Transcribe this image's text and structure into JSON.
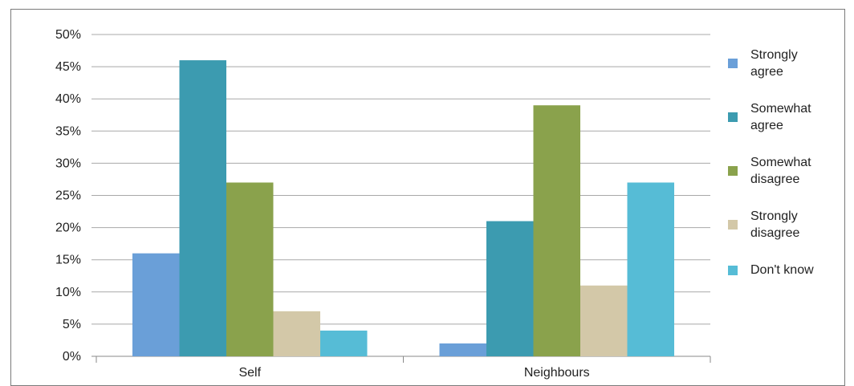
{
  "chart_data": {
    "type": "bar",
    "categories": [
      "Self",
      "Neighbours"
    ],
    "series": [
      {
        "name": "Strongly agree",
        "values": [
          16,
          2
        ],
        "color": "#6a9fd8"
      },
      {
        "name": "Somewhat agree",
        "values": [
          46,
          21
        ],
        "color": "#3c9bb0"
      },
      {
        "name": "Somewhat disagree",
        "values": [
          27,
          39
        ],
        "color": "#8aa24c"
      },
      {
        "name": "Strongly disagree",
        "values": [
          7,
          11
        ],
        "color": "#d3c8a8"
      },
      {
        "name": "Don't know",
        "values": [
          4,
          27
        ],
        "color": "#56bcd6"
      }
    ],
    "ylim": [
      0,
      50
    ],
    "yticks": [
      "0%",
      "5%",
      "10%",
      "15%",
      "20%",
      "25%",
      "30%",
      "35%",
      "40%",
      "45%",
      "50%"
    ],
    "grid": true,
    "legend": "right",
    "legend_labels": [
      [
        "Strongly",
        "agree"
      ],
      [
        "Somewhat",
        "agree"
      ],
      [
        "Somewhat",
        "disagree"
      ],
      [
        "Strongly",
        "disagree"
      ],
      [
        "Don't know"
      ]
    ],
    "title": "",
    "xlabel": "",
    "ylabel": ""
  }
}
